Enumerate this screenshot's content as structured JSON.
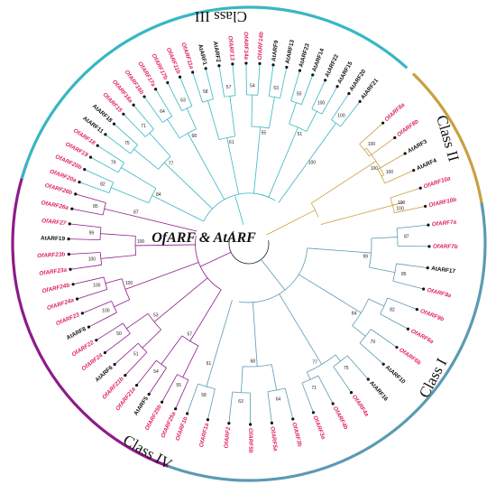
{
  "title": "OfARF & AtARF",
  "colors": {
    "classI": "#5b9ab3",
    "classII": "#c9a03e",
    "classIII": "#37b7c3",
    "classIV": "#8e1b8a",
    "of_label": "#e0245e",
    "at_label": "#111111",
    "root": "#222222",
    "dot": "#111111"
  },
  "classes": [
    {
      "id": "I",
      "label": "Class I"
    },
    {
      "id": "II",
      "label": "Class II"
    },
    {
      "id": "III",
      "label": "Class III"
    },
    {
      "id": "IV",
      "label": "Class IV"
    }
  ],
  "leaves": {
    "classII": [
      "OfARF8a",
      "OfARF8b",
      "AtARF3",
      "AtARF4",
      "OfARF10a",
      "OfARF10b"
    ],
    "classI": [
      "OfARF7a",
      "OfARF7b",
      "AtARF17",
      "OfARF9a",
      "OfARF9b",
      "OfARF6a",
      "OfARF6b",
      "AtARF10",
      "AtARF16",
      "OfARF4a",
      "OfARF4b",
      "OfARF3a",
      "OfARF3b",
      "OfARF5a",
      "OfARF5b",
      "OfARF2",
      "OfARF1a",
      "OfARF1b"
    ],
    "classIV": [
      "OfARF25a",
      "OfARF25b",
      "AtARF5",
      "OfARF21a",
      "OfARF21b",
      "AtARF6",
      "OfARF24",
      "OfARF22",
      "AtARF8",
      "OfARF23",
      "OfARF24a",
      "OfARF24b",
      "OfARF23a",
      "OfARF23b",
      "AtARF19",
      "OfARF27",
      "OfARF26a",
      "OfARF26b"
    ],
    "classIII": [
      "OfARF20a",
      "OfARF20b",
      "OfARF19",
      "OfARF18",
      "AtARF11",
      "AtARF18",
      "OfARF15",
      "OfARF16a",
      "OfARF16b",
      "OfARF17a",
      "OfARF17b",
      "OfARF11b",
      "OfARF11a",
      "AtARF1",
      "AtARF2",
      "OfARF13",
      "OfARF14a",
      "OfARF14b",
      "AtARF9",
      "AtARF13",
      "AtARF23",
      "AtARF14",
      "AtARF22",
      "AtARF15",
      "AtARF20",
      "AtARF21"
    ]
  },
  "bootstrap": [
    "100",
    "100",
    "100",
    "100",
    "100",
    "99",
    "87",
    "85",
    "84",
    "82",
    "79",
    "77",
    "75",
    "71",
    "68",
    "64",
    "63",
    "61",
    "58",
    "57",
    "55",
    "54",
    "53",
    "51",
    "50"
  ]
}
